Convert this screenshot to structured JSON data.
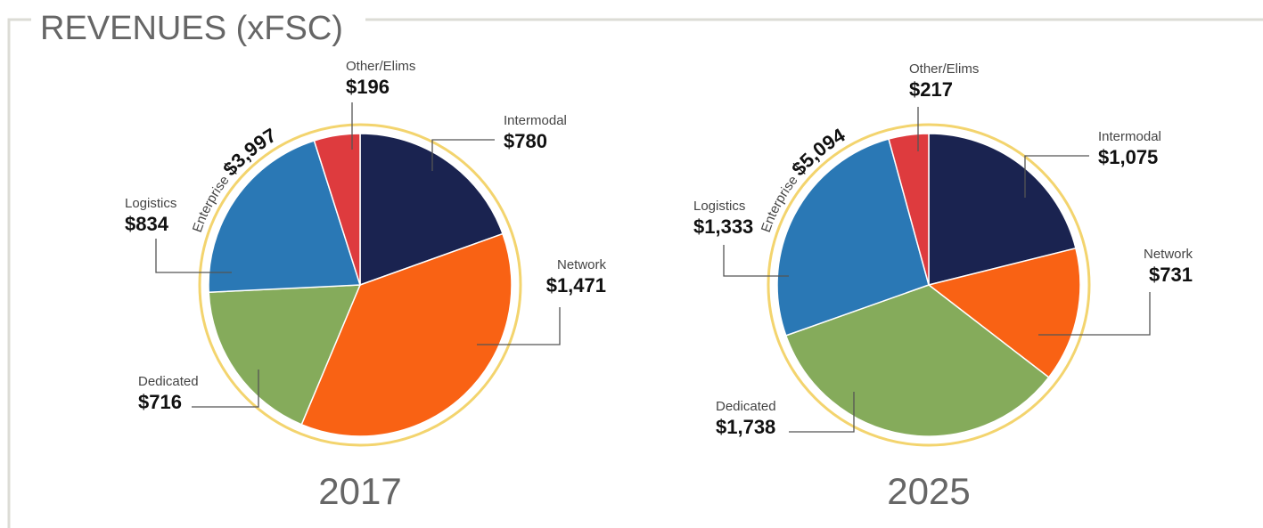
{
  "title": "REVENUES (xFSC)",
  "chart_data": [
    {
      "type": "pie",
      "title": "2017",
      "categories": [
        "Intermodal",
        "Network",
        "Dedicated",
        "Logistics",
        "Other/Elims"
      ],
      "values": [
        780,
        1471,
        716,
        834,
        196
      ],
      "value_labels": [
        "$780",
        "$1,471",
        "$716",
        "$834",
        "$196"
      ],
      "colors": [
        "#1a2350",
        "#f96214",
        "#85ab5b",
        "#2a78b5",
        "#de3b3e"
      ],
      "total_name": "Enterprise",
      "total": 3997,
      "total_label": "$3,997"
    },
    {
      "type": "pie",
      "title": "2025",
      "categories": [
        "Intermodal",
        "Network",
        "Dedicated",
        "Logistics",
        "Other/Elims"
      ],
      "values": [
        1075,
        731,
        1738,
        1333,
        217
      ],
      "value_labels": [
        "$1,075",
        "$731",
        "$1,738",
        "$1,333",
        "$217"
      ],
      "colors": [
        "#1a2350",
        "#f96214",
        "#85ab5b",
        "#2a78b5",
        "#de3b3e"
      ],
      "total_name": "Enterprise",
      "total": 5094,
      "total_label": "$5,094"
    }
  ]
}
